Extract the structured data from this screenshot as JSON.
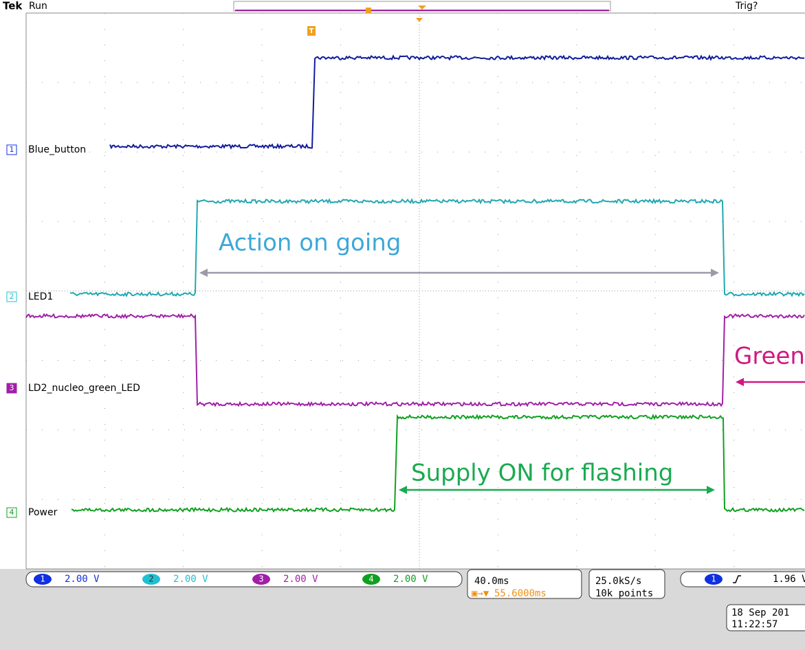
{
  "header": {
    "brand": "Tek",
    "status": "Run",
    "trigger": "Trig?",
    "trigger_marker": "T"
  },
  "channels": [
    {
      "number": "1",
      "label": "Blue_button",
      "scale": "2.00 V"
    },
    {
      "number": "2",
      "label": "LED1",
      "scale": "2.00 V"
    },
    {
      "number": "3",
      "label": "LD2_nucleo_green_LED",
      "scale": "2.00 V"
    },
    {
      "number": "4",
      "label": "Power",
      "scale": "2.00 V"
    }
  ],
  "annotations": [
    "Action on going",
    "Supply ON for flashing",
    "Green"
  ],
  "timebase": {
    "scale": "40.0ms",
    "delay": "55.6000ms"
  },
  "acquisition": {
    "rate": "25.0kS/s",
    "length": "10k points"
  },
  "trigger_readout": {
    "source": "1",
    "level": "1.96 V"
  },
  "timestamp": {
    "date": "18 Sep 201",
    "time": "11:22:57"
  }
}
